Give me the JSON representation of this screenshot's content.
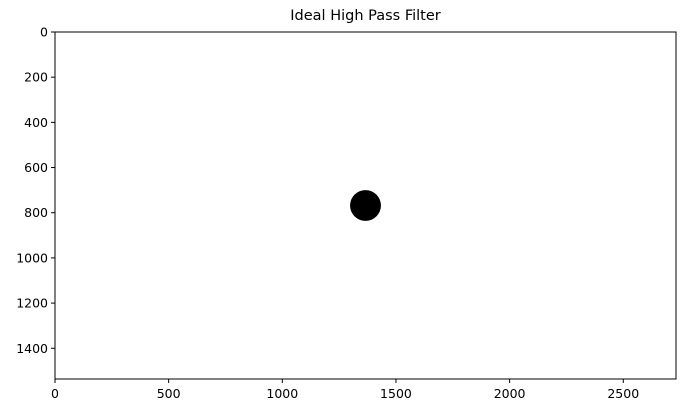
{
  "chart_data": {
    "type": "heatmap",
    "title": "Ideal High Pass Filter",
    "xlabel": "",
    "ylabel": "",
    "image_width": 2732,
    "image_height": 1536,
    "xlim": [
      0,
      2732
    ],
    "ylim": [
      1536,
      0
    ],
    "y_axis_inverted": true,
    "x_ticks": [
      0,
      500,
      1000,
      1500,
      2000,
      2500
    ],
    "x_tick_labels": [
      "0",
      "500",
      "1000",
      "1500",
      "2000",
      "2500"
    ],
    "y_ticks": [
      0,
      200,
      400,
      600,
      800,
      1000,
      1200,
      1400
    ],
    "y_tick_labels": [
      "0",
      "200",
      "400",
      "600",
      "800",
      "1000",
      "1200",
      "1400"
    ],
    "colormap": "gray",
    "background_value": 1,
    "background_color": "#ffffff",
    "regions": [
      {
        "shape": "circle",
        "center_x": 1366,
        "center_y": 768,
        "radius": 68,
        "value": 0,
        "color": "#000000"
      }
    ],
    "grid": false,
    "legend": "none"
  }
}
